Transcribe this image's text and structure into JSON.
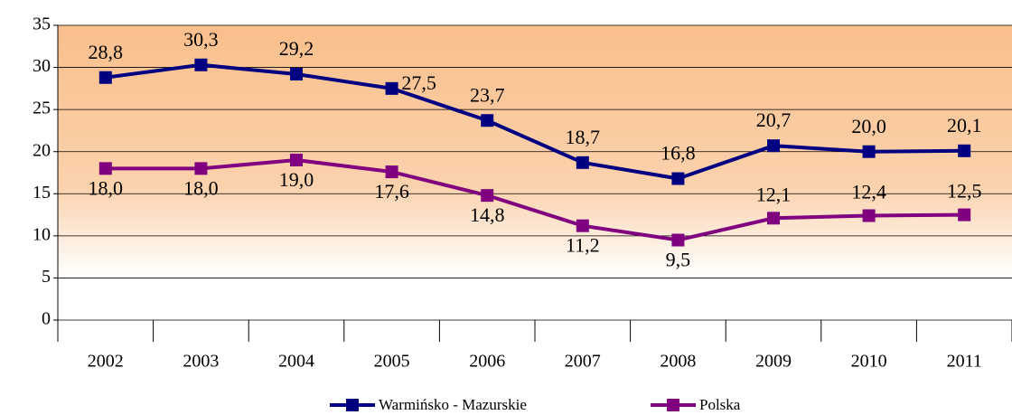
{
  "chart_data": {
    "type": "line",
    "categories": [
      "2002",
      "2003",
      "2004",
      "2005",
      "2006",
      "2007",
      "2008",
      "2009",
      "2010",
      "2011"
    ],
    "series": [
      {
        "name": "Warmińsko - Mazurskie",
        "color": "#000080",
        "values": [
          28.8,
          30.3,
          29.2,
          27.5,
          23.7,
          18.7,
          16.8,
          20.7,
          20.0,
          20.1
        ],
        "value_labels": [
          "28,8",
          "30,3",
          "29,2",
          "27,5",
          "23,7",
          "18,7",
          "16,8",
          "20,7",
          "20,0",
          "20,1"
        ]
      },
      {
        "name": "Polska",
        "color": "#800080",
        "values": [
          18.0,
          18.0,
          19.0,
          17.6,
          14.8,
          11.2,
          9.5,
          12.1,
          12.4,
          12.5
        ],
        "value_labels": [
          "18,0",
          "18,0",
          "19,0",
          "17,6",
          "14,8",
          "11,2",
          "9,5",
          "12,1",
          "12,4",
          "12,5"
        ]
      }
    ],
    "ylim": [
      0,
      35
    ],
    "yticks": [
      0,
      5,
      10,
      15,
      20,
      25,
      30,
      35
    ],
    "grid": true,
    "legend": "bottom"
  }
}
